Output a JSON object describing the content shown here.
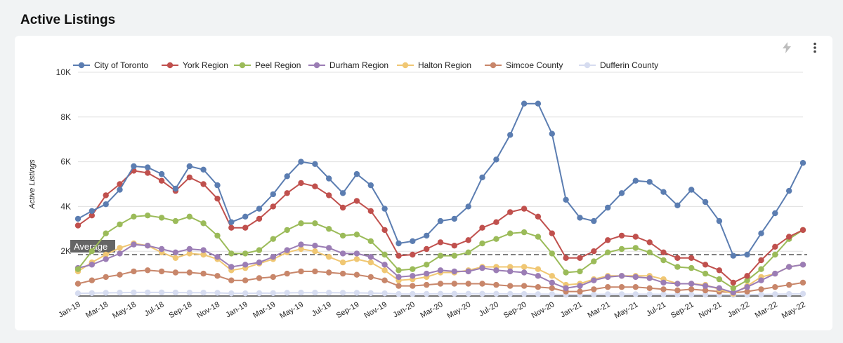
{
  "page": {
    "title": "Active Listings"
  },
  "colors": {
    "series": [
      "#5b7db1",
      "#c0504d",
      "#9bbb59",
      "#9b7db5",
      "#f0c773",
      "#c8866a",
      "#d6dcf0"
    ],
    "grid": "#e0e0e0",
    "average_line": "#333333"
  },
  "toolbar": {
    "bolt_icon": "lightning-bolt-icon",
    "menu_icon": "more-vertical-icon"
  },
  "chart_data": {
    "type": "line",
    "title": "",
    "xlabel": "",
    "ylabel": "Active Listings",
    "ylim": [
      0,
      10000
    ],
    "yticks": [
      2000,
      4000,
      6000,
      8000,
      10000
    ],
    "ytick_labels": [
      "2K",
      "4K",
      "6K",
      "8K",
      "10K"
    ],
    "x": [
      "Jan-18",
      "Feb-18",
      "Mar-18",
      "Apr-18",
      "May-18",
      "Jun-18",
      "Jul-18",
      "Aug-18",
      "Sep-18",
      "Oct-18",
      "Nov-18",
      "Dec-18",
      "Jan-19",
      "Feb-19",
      "Mar-19",
      "Apr-19",
      "May-19",
      "Jun-19",
      "Jul-19",
      "Aug-19",
      "Sep-19",
      "Oct-19",
      "Nov-19",
      "Dec-19",
      "Jan-20",
      "Feb-20",
      "Mar-20",
      "Apr-20",
      "May-20",
      "Jun-20",
      "Jul-20",
      "Aug-20",
      "Sep-20",
      "Oct-20",
      "Nov-20",
      "Dec-20",
      "Jan-21",
      "Feb-21",
      "Mar-21",
      "Apr-21",
      "May-21",
      "Jun-21",
      "Jul-21",
      "Aug-21",
      "Sep-21",
      "Oct-21",
      "Nov-21",
      "Dec-21",
      "Jan-22",
      "Feb-22",
      "Mar-22",
      "Apr-22",
      "May-22"
    ],
    "x_tick_labels": [
      "Jan-18",
      "Mar-18",
      "May-18",
      "Jul-18",
      "Sep-18",
      "Nov-18",
      "Jan-19",
      "Mar-19",
      "May-19",
      "Jul-19",
      "Sep-19",
      "Nov-19",
      "Jan-20",
      "Mar-20",
      "May-20",
      "Jul-20",
      "Sep-20",
      "Nov-20",
      "Jan-21",
      "Mar-21",
      "May-21",
      "Jul-21",
      "Sep-21",
      "Nov-21",
      "Jan-22",
      "Mar-22",
      "May-22"
    ],
    "legend_position": "top",
    "grid": true,
    "average": {
      "label": "Average",
      "value": 1850
    },
    "series": [
      {
        "name": "City of Toronto",
        "values": [
          3450,
          3800,
          4100,
          4750,
          5800,
          5750,
          5450,
          4800,
          5800,
          5650,
          4950,
          3300,
          3550,
          3900,
          4550,
          5350,
          6000,
          5900,
          5250,
          4600,
          5450,
          4950,
          3900,
          2350,
          2450,
          2700,
          3350,
          3450,
          4000,
          5300,
          6100,
          7200,
          8600,
          8600,
          7250,
          4300,
          3500,
          3350,
          3950,
          4600,
          5150,
          5100,
          4650,
          4050,
          4750,
          4200,
          3350,
          1800,
          1850,
          2800,
          3700,
          4700,
          5950
        ]
      },
      {
        "name": "York Region",
        "values": [
          3150,
          3600,
          4500,
          5000,
          5600,
          5500,
          5150,
          4700,
          5300,
          5000,
          4350,
          3050,
          3050,
          3450,
          4000,
          4600,
          5050,
          4900,
          4500,
          3950,
          4250,
          3800,
          2950,
          1800,
          1850,
          2100,
          2400,
          2250,
          2500,
          3050,
          3300,
          3750,
          3900,
          3550,
          2800,
          1700,
          1700,
          2000,
          2500,
          2700,
          2650,
          2400,
          1950,
          1700,
          1700,
          1400,
          1150,
          600,
          900,
          1600,
          2200,
          2650,
          2950
        ]
      },
      {
        "name": "Peel Region",
        "values": [
          1200,
          2000,
          2800,
          3200,
          3550,
          3600,
          3500,
          3350,
          3550,
          3250,
          2700,
          1900,
          1900,
          2050,
          2550,
          2950,
          3250,
          3250,
          3000,
          2700,
          2750,
          2450,
          1850,
          1150,
          1200,
          1400,
          1800,
          1800,
          1950,
          2350,
          2550,
          2800,
          2850,
          2650,
          1900,
          1050,
          1100,
          1550,
          1950,
          2100,
          2150,
          1950,
          1600,
          1300,
          1250,
          1000,
          750,
          350,
          700,
          1200,
          1850,
          2550,
          2950
        ]
      },
      {
        "name": "Durham Region",
        "values": [
          1250,
          1400,
          1650,
          1900,
          2300,
          2250,
          2100,
          1950,
          2100,
          2050,
          1750,
          1300,
          1400,
          1500,
          1750,
          2050,
          2300,
          2250,
          2150,
          1900,
          1900,
          1750,
          1400,
          850,
          900,
          1000,
          1150,
          1100,
          1100,
          1250,
          1150,
          1100,
          1050,
          900,
          600,
          350,
          450,
          700,
          850,
          900,
          850,
          800,
          600,
          550,
          550,
          450,
          350,
          150,
          400,
          700,
          1000,
          1300,
          1400
        ]
      },
      {
        "name": "Halton Region",
        "values": [
          1100,
          1500,
          1850,
          2150,
          2350,
          2250,
          1950,
          1700,
          1900,
          1850,
          1650,
          1150,
          1250,
          1450,
          1650,
          1950,
          2100,
          2000,
          1750,
          1500,
          1650,
          1500,
          1150,
          700,
          750,
          850,
          1050,
          1050,
          1150,
          1300,
          1300,
          1300,
          1300,
          1200,
          900,
          500,
          550,
          750,
          900,
          900,
          900,
          900,
          750,
          550,
          550,
          500,
          300,
          100,
          450,
          850,
          1000,
          1300,
          1400
        ]
      },
      {
        "name": "Simcoe County",
        "values": [
          550,
          700,
          850,
          950,
          1100,
          1150,
          1100,
          1050,
          1050,
          1000,
          900,
          700,
          700,
          800,
          850,
          1000,
          1100,
          1100,
          1050,
          1000,
          950,
          850,
          700,
          450,
          450,
          500,
          550,
          550,
          550,
          550,
          500,
          450,
          450,
          400,
          350,
          200,
          200,
          300,
          400,
          400,
          400,
          350,
          300,
          250,
          300,
          250,
          200,
          150,
          200,
          300,
          400,
          500,
          600
        ]
      },
      {
        "name": "Dufferin County",
        "values": [
          120,
          130,
          140,
          150,
          160,
          160,
          160,
          155,
          150,
          150,
          140,
          120,
          120,
          125,
          130,
          140,
          150,
          150,
          150,
          145,
          140,
          130,
          120,
          90,
          90,
          95,
          100,
          100,
          100,
          100,
          100,
          95,
          90,
          85,
          80,
          60,
          60,
          70,
          80,
          80,
          80,
          80,
          75,
          70,
          70,
          65,
          60,
          50,
          60,
          70,
          80,
          90,
          100
        ]
      }
    ]
  }
}
